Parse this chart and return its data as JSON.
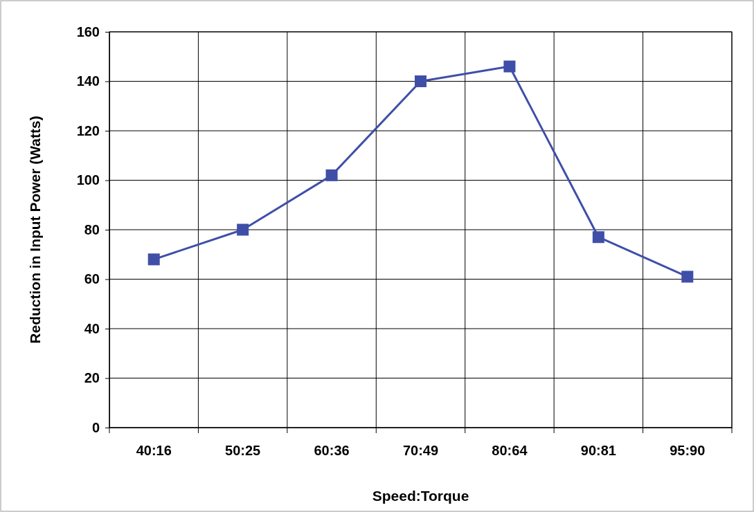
{
  "chart_data": {
    "type": "line",
    "xlabel": "Speed:Torque",
    "ylabel": "Reduction in Input Power  (Watts)",
    "categories": [
      "40:16",
      "50:25",
      "60:36",
      "70:49",
      "80:64",
      "90:81",
      "95:90"
    ],
    "series": [
      {
        "color": "#3f4fa8",
        "values": [
          68,
          80,
          102,
          140,
          146,
          77,
          61
        ]
      }
    ],
    "ylim": [
      0,
      160
    ],
    "yticks": [
      0,
      20,
      40,
      60,
      80,
      100,
      120,
      140,
      160
    ],
    "grid": true,
    "marker": "square",
    "line_style": "solid"
  }
}
